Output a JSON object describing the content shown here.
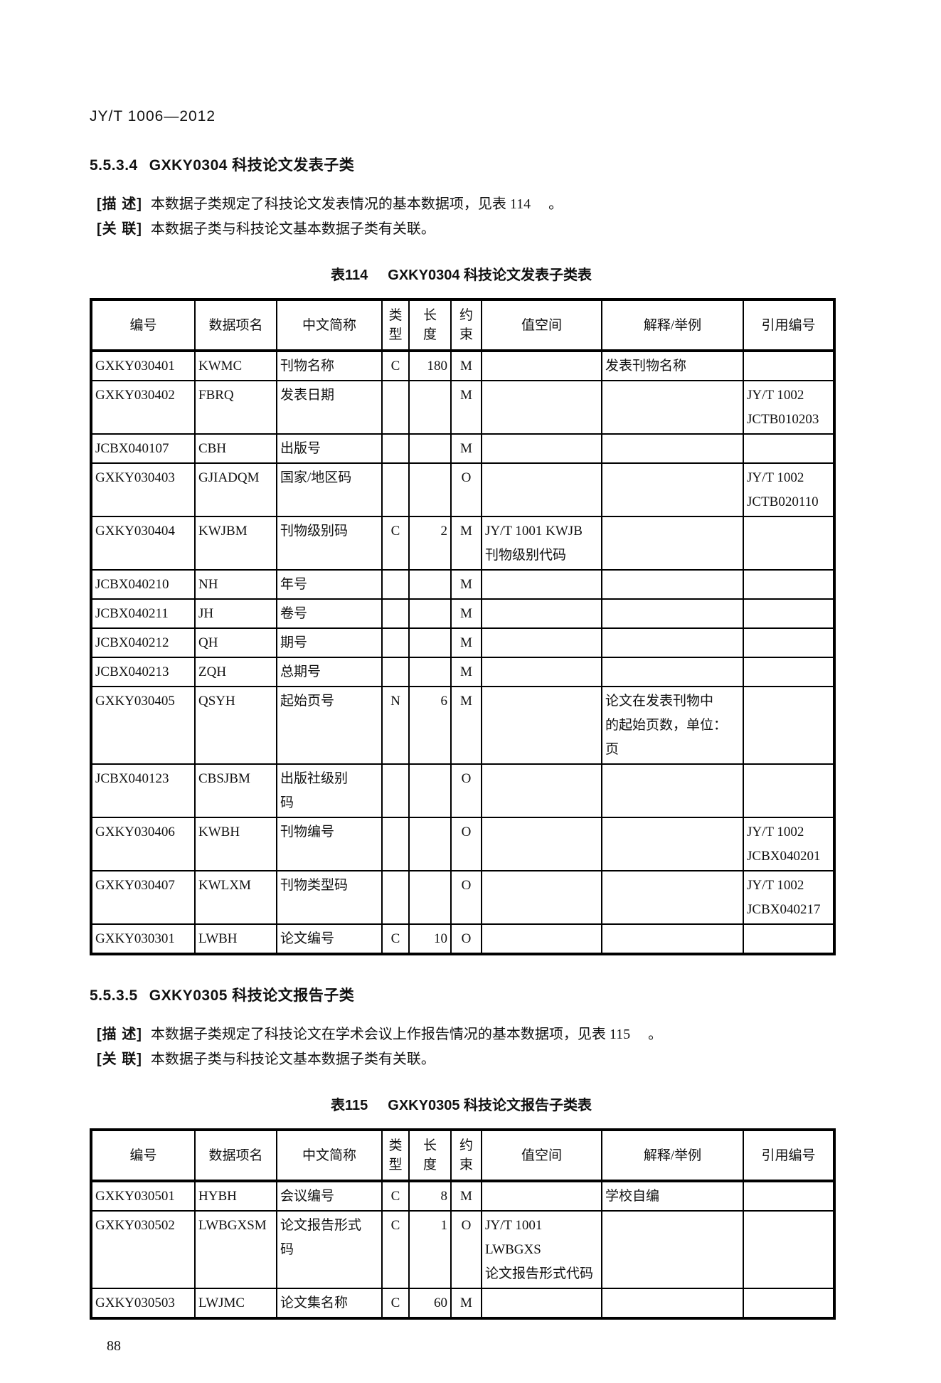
{
  "page": {
    "doc_code": "JY/T 1006—2012",
    "page_number": "88"
  },
  "table_columns": [
    "编号",
    "数据项名",
    "中文简称",
    "类型",
    "长度",
    "约束",
    "值空间",
    "解释/举例",
    "引用编号"
  ],
  "sections": [
    {
      "heading_number": "5.5.3.4",
      "heading_title": "GXKY0304 科技论文发表子类",
      "desc_label": "[描 述]",
      "desc_text": "本数据子类规定了科技论文发表情况的基本数据项，见表 114 　。",
      "rel_label": "[关 联]",
      "rel_text": "本数据子类与科技论文基本数据子类有关联。",
      "caption_no": "表114",
      "caption_title": "GXKY0304 科技论文发表子类表",
      "rows": [
        [
          "GXKY030401",
          "KWMC",
          "刊物名称",
          "C",
          "180",
          "M",
          "",
          "发表刊物名称",
          ""
        ],
        [
          "GXKY030402",
          "FBRQ",
          "发表日期",
          "",
          "",
          "M",
          "",
          "",
          "JY/T 1002\nJCTB010203"
        ],
        [
          "JCBX040107",
          "CBH",
          "出版号",
          "",
          "",
          "M",
          "",
          "",
          ""
        ],
        [
          "GXKY030403",
          "GJIADQM",
          "国家/地区码",
          "",
          "",
          "O",
          "",
          "",
          "JY/T 1002\nJCTB020110"
        ],
        [
          "GXKY030404",
          "KWJBM",
          "刊物级别码",
          "C",
          "2",
          "M",
          "JY/T 1001 KWJB\n刊物级别代码",
          "",
          ""
        ],
        [
          "JCBX040210",
          "NH",
          "年号",
          "",
          "",
          "M",
          "",
          "",
          ""
        ],
        [
          "JCBX040211",
          "JH",
          "卷号",
          "",
          "",
          "M",
          "",
          "",
          ""
        ],
        [
          "JCBX040212",
          "QH",
          "期号",
          "",
          "",
          "M",
          "",
          "",
          ""
        ],
        [
          "JCBX040213",
          "ZQH",
          "总期号",
          "",
          "",
          "M",
          "",
          "",
          ""
        ],
        [
          "GXKY030405",
          "QSYH",
          "起始页号",
          "N",
          "6",
          "M",
          "",
          "论文在发表刊物中\n的起始页数，单位：\n页",
          ""
        ],
        [
          "JCBX040123",
          "CBSJBM",
          "出版社级别\n码",
          "",
          "",
          "O",
          "",
          "",
          ""
        ],
        [
          "GXKY030406",
          "KWBH",
          "刊物编号",
          "",
          "",
          "O",
          "",
          "",
          "JY/T 1002\nJCBX040201"
        ],
        [
          "GXKY030407",
          "KWLXM",
          "刊物类型码",
          "",
          "",
          "O",
          "",
          "",
          "JY/T 1002\nJCBX040217"
        ],
        [
          "GXKY030301",
          "LWBH",
          "论文编号",
          "C",
          "10",
          "O",
          "",
          "",
          ""
        ]
      ]
    },
    {
      "heading_number": "5.5.3.5",
      "heading_title": "GXKY0305 科技论文报告子类",
      "desc_label": "[描 述]",
      "desc_text": "本数据子类规定了科技论文在学术会议上作报告情况的基本数据项，见表 115 　。",
      "rel_label": "[关 联]",
      "rel_text": "本数据子类与科技论文基本数据子类有关联。",
      "caption_no": "表115",
      "caption_title": "GXKY0305 科技论文报告子类表",
      "rows": [
        [
          "GXKY030501",
          "HYBH",
          "会议编号",
          "C",
          "8",
          "M",
          "",
          "学校自编",
          ""
        ],
        [
          "GXKY030502",
          "LWBGXSM",
          "论文报告形式\n码",
          "C",
          "1",
          "O",
          "JY/T 1001 LWBGXS\n论文报告形式代码",
          "",
          ""
        ],
        [
          "GXKY030503",
          "LWJMC",
          "论文集名称",
          "C",
          "60",
          "M",
          "",
          "",
          ""
        ]
      ]
    }
  ]
}
